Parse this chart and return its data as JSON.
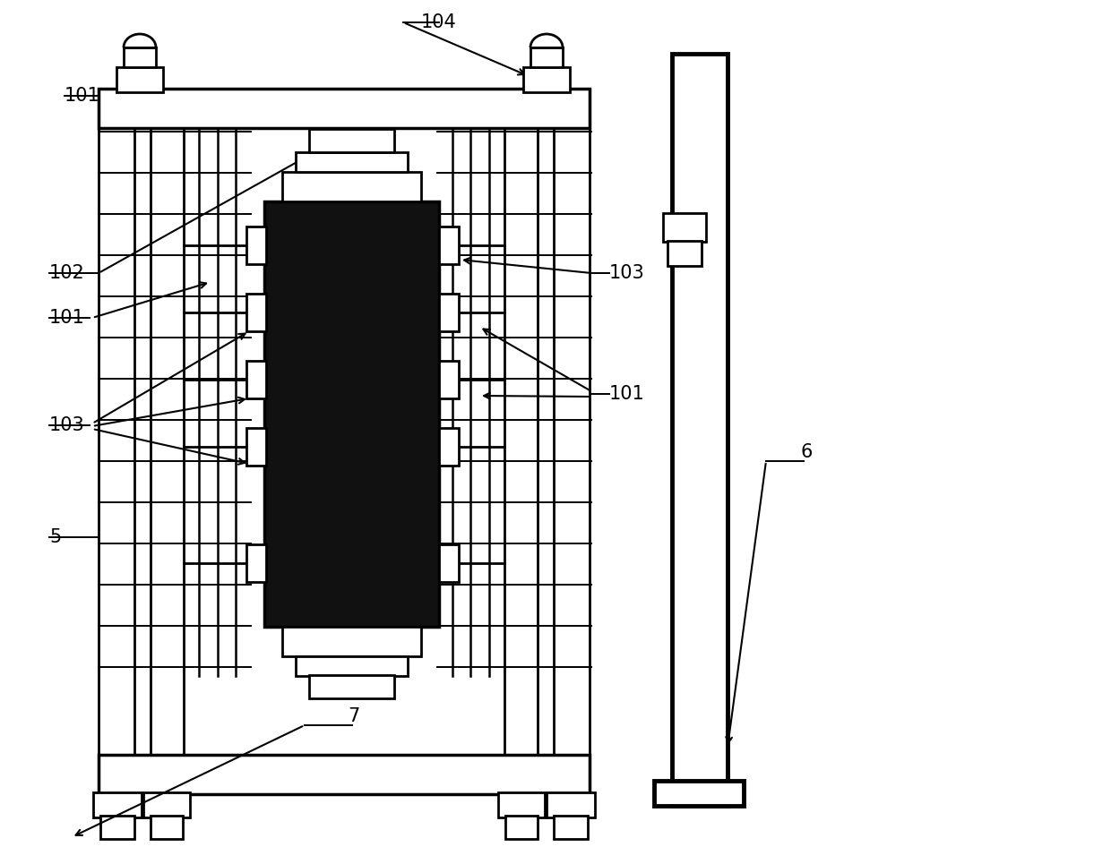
{
  "bg_color": "#ffffff",
  "line_color": "#000000",
  "dark_fill": "#111111",
  "lw": 2.0,
  "lw2": 2.5,
  "lw3": 3.5,
  "fontsize": 15
}
